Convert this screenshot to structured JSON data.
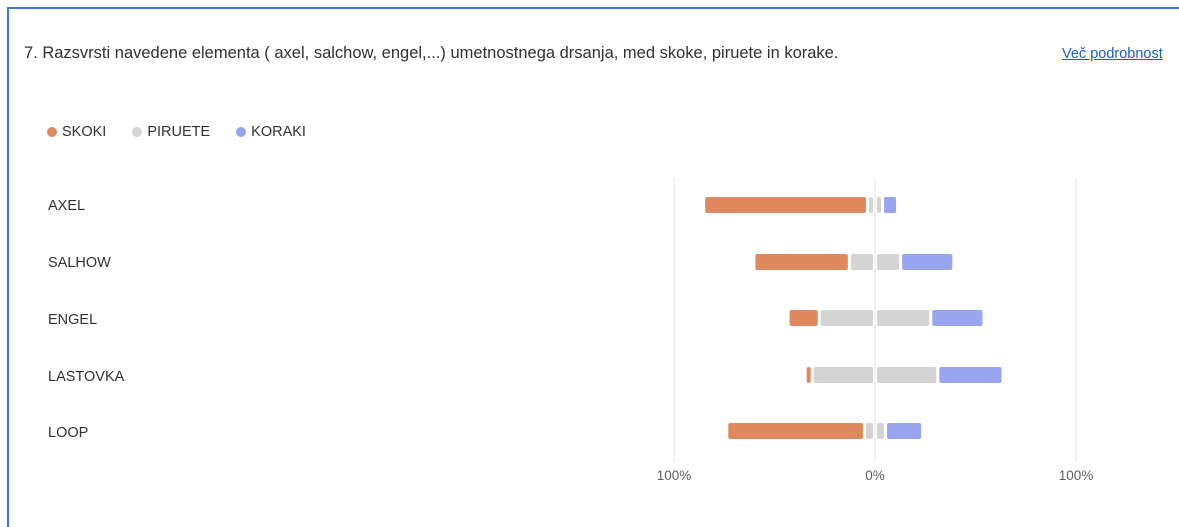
{
  "question": {
    "text": "7. Razsvrsti navedene elementa ( axel, salchow, engel,...) umetnostnega drsanja, med skoke, piruete in korake.",
    "more_link": "Več podrobnost"
  },
  "chart_data": {
    "type": "bar",
    "orientation": "horizontal-diverging",
    "categories": [
      "AXEL",
      "SALHOW",
      "ENGEL",
      "LASTOVKA",
      "LOOP"
    ],
    "series": [
      {
        "name": "SKOKI",
        "color": "#e0895f",
        "values": [
          80,
          46,
          14,
          2,
          67
        ]
      },
      {
        "name": "PIRUETE",
        "color": "#d4d4d4",
        "values": [
          6,
          24,
          54,
          61,
          9
        ]
      },
      {
        "name": "KORAKI",
        "color": "#99a6ef",
        "values": [
          6,
          25,
          25,
          31,
          17
        ]
      }
    ],
    "x_ticks": [
      "100%",
      "0%",
      "100%"
    ],
    "xlim": [
      -100,
      100
    ],
    "legend_position": "top-left",
    "grid": true
  }
}
